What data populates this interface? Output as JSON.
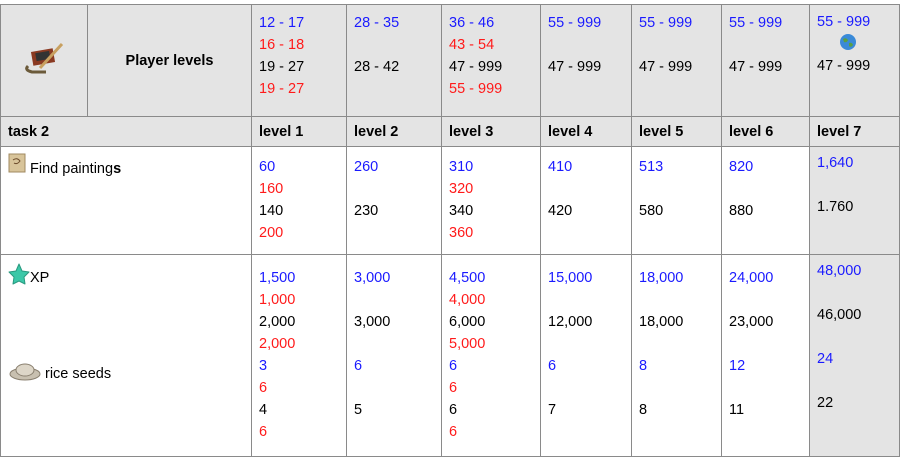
{
  "header": {
    "title": "Player levels",
    "icon": "painting-tools-icon",
    "levels": [
      [
        [
          "12 - 17",
          "b"
        ],
        [
          "16 - 18",
          "r"
        ],
        [
          "19 - 27",
          "k"
        ],
        [
          "19 - 27",
          "r"
        ]
      ],
      [
        [
          "28 - 35",
          "b"
        ],
        [
          "",
          ""
        ],
        [
          "28 - 42",
          "k"
        ],
        [
          "",
          ""
        ]
      ],
      [
        [
          "36 - 46",
          "b"
        ],
        [
          "43 - 54",
          "r"
        ],
        [
          "47 - 999",
          "k"
        ],
        [
          "55 - 999",
          "r"
        ]
      ],
      [
        [
          "55 - 999",
          "b"
        ],
        [
          "",
          ""
        ],
        [
          "47 - 999",
          "k"
        ],
        [
          "",
          ""
        ]
      ],
      [
        [
          "55 - 999",
          "b"
        ],
        [
          "",
          ""
        ],
        [
          "47 - 999",
          "k"
        ],
        [
          "",
          ""
        ]
      ],
      [
        [
          "55 - 999",
          "b"
        ],
        [
          "",
          ""
        ],
        [
          "47 - 999",
          "k"
        ],
        [
          "",
          ""
        ]
      ]
    ],
    "level7": {
      "top": "55 - 999",
      "bottom": "47 - 999",
      "icon": "globe-icon"
    }
  },
  "level_row": {
    "task": "task 2",
    "levels": [
      "level 1",
      "level 2",
      "level 3",
      "level 4",
      "level 5",
      "level 6",
      "level 7"
    ]
  },
  "rows": [
    {
      "label": "Find painting",
      "label_bold": "s",
      "icon": "painting-scroll-icon",
      "cells": [
        [
          [
            "60",
            "b"
          ],
          [
            "160",
            "r"
          ],
          [
            "140",
            "k"
          ],
          [
            "200",
            "r"
          ]
        ],
        [
          [
            "260",
            "b"
          ],
          [
            "",
            ""
          ],
          [
            "230",
            "k"
          ],
          [
            "",
            ""
          ]
        ],
        [
          [
            "310",
            "b"
          ],
          [
            "320",
            "r"
          ],
          [
            "340",
            "k"
          ],
          [
            "360",
            "r"
          ]
        ],
        [
          [
            "410",
            "b"
          ],
          [
            "",
            ""
          ],
          [
            "420",
            "k"
          ],
          [
            "",
            ""
          ]
        ],
        [
          [
            "513",
            "b"
          ],
          [
            "",
            ""
          ],
          [
            "580",
            "k"
          ],
          [
            "",
            ""
          ]
        ],
        [
          [
            "820",
            "b"
          ],
          [
            "",
            ""
          ],
          [
            "880",
            "k"
          ],
          [
            "",
            ""
          ]
        ],
        [
          [
            "1,640",
            "b"
          ],
          [
            "",
            ""
          ],
          [
            "1.760",
            "k"
          ]
        ]
      ]
    },
    {
      "label": "XP",
      "label2": "rice seeds",
      "icon": "xp-star-icon",
      "icon2": "rice-seeds-icon",
      "cells": [
        [
          [
            "1,500",
            "b"
          ],
          [
            "1,000",
            "r"
          ],
          [
            "2,000",
            "k"
          ],
          [
            "2,000",
            "r"
          ],
          [
            "3",
            "b"
          ],
          [
            "6",
            "r"
          ],
          [
            "4",
            "k"
          ],
          [
            "6",
            "r"
          ]
        ],
        [
          [
            "3,000",
            "b"
          ],
          [
            "",
            ""
          ],
          [
            "3,000",
            "k"
          ],
          [
            "",
            ""
          ],
          [
            "6",
            "b"
          ],
          [
            "",
            ""
          ],
          [
            "5",
            "k"
          ],
          [
            "",
            ""
          ]
        ],
        [
          [
            "4,500",
            "b"
          ],
          [
            "4,000",
            "r"
          ],
          [
            "6,000",
            "k"
          ],
          [
            "5,000",
            "r"
          ],
          [
            "6",
            "b"
          ],
          [
            "6",
            "r"
          ],
          [
            "6",
            "k"
          ],
          [
            "6",
            "r"
          ]
        ],
        [
          [
            "15,000",
            "b"
          ],
          [
            "",
            ""
          ],
          [
            "12,000",
            "k"
          ],
          [
            "",
            ""
          ],
          [
            "6",
            "b"
          ],
          [
            "",
            ""
          ],
          [
            "7",
            "k"
          ],
          [
            "",
            ""
          ]
        ],
        [
          [
            "18,000",
            "b"
          ],
          [
            "",
            ""
          ],
          [
            "18,000",
            "k"
          ],
          [
            "",
            ""
          ],
          [
            "8",
            "b"
          ],
          [
            "",
            ""
          ],
          [
            "8",
            "k"
          ],
          [
            "",
            ""
          ]
        ],
        [
          [
            "24,000",
            "b"
          ],
          [
            "",
            ""
          ],
          [
            "23,000",
            "k"
          ],
          [
            "",
            ""
          ],
          [
            "12",
            "b"
          ],
          [
            "",
            ""
          ],
          [
            "11",
            "k"
          ],
          [
            "",
            ""
          ]
        ],
        [
          [
            "48,000",
            "b"
          ],
          [
            "",
            ""
          ],
          [
            "46,000",
            "k"
          ],
          [
            "",
            ""
          ],
          [
            "24",
            "b"
          ],
          [
            "",
            ""
          ],
          [
            "22",
            "k"
          ],
          [
            "",
            ""
          ]
        ]
      ]
    }
  ]
}
